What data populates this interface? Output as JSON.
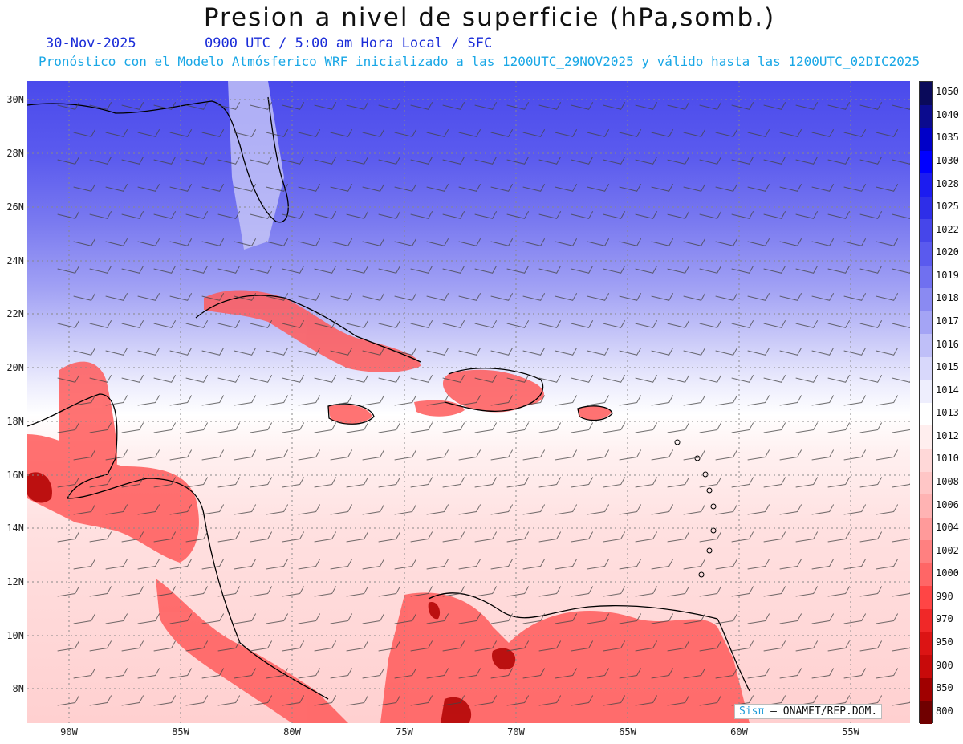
{
  "header": {
    "title": "Presion a nivel de superficie (hPa,somb.)",
    "date": "30-Nov-2025",
    "time": "0900 UTC / 5:00 am Hora Local / SFC",
    "forecast_note": "Pronóstico con el Modelo Atmósferico WRF inicializado a las 1200UTC_29NOV2025 y válido hasta las  1200UTC_02DIC2025"
  },
  "axes": {
    "lat_labels": [
      "30N",
      "28N",
      "26N",
      "24N",
      "22N",
      "20N",
      "18N",
      "16N",
      "14N",
      "12N",
      "10N",
      "8N"
    ],
    "lon_labels": [
      "90W",
      "85W",
      "80W",
      "75W",
      "70W",
      "65W",
      "60W",
      "55W"
    ]
  },
  "colorbar": {
    "levels": [
      "1050",
      "1040",
      "1035",
      "1030",
      "1028",
      "1025",
      "1022",
      "1020",
      "1019",
      "1018",
      "1017",
      "1016",
      "1015",
      "1014",
      "1013",
      "1012",
      "1010",
      "1008",
      "1006",
      "1004",
      "1002",
      "1000",
      "990",
      "970",
      "950",
      "900",
      "850",
      "800"
    ],
    "colors": [
      "#0a0a5a",
      "#0b0b8e",
      "#0000c8",
      "#0000ff",
      "#1c1cf0",
      "#2e2ee8",
      "#4646ea",
      "#5a5aee",
      "#7070f0",
      "#8a8af2",
      "#a4a4f5",
      "#bfbff8",
      "#d8d8fb",
      "#eeeefd",
      "#ffffff",
      "#ffeeee",
      "#ffd8d8",
      "#ffc6c6",
      "#ffb3b3",
      "#ff9a9a",
      "#ff8080",
      "#ff6666",
      "#ff4545",
      "#f02828",
      "#dc1414",
      "#c80a0a",
      "#a00000",
      "#700000"
    ]
  },
  "credit": {
    "sis": "Sisπ",
    "org": " – ONAMET/REP.DOM."
  }
}
